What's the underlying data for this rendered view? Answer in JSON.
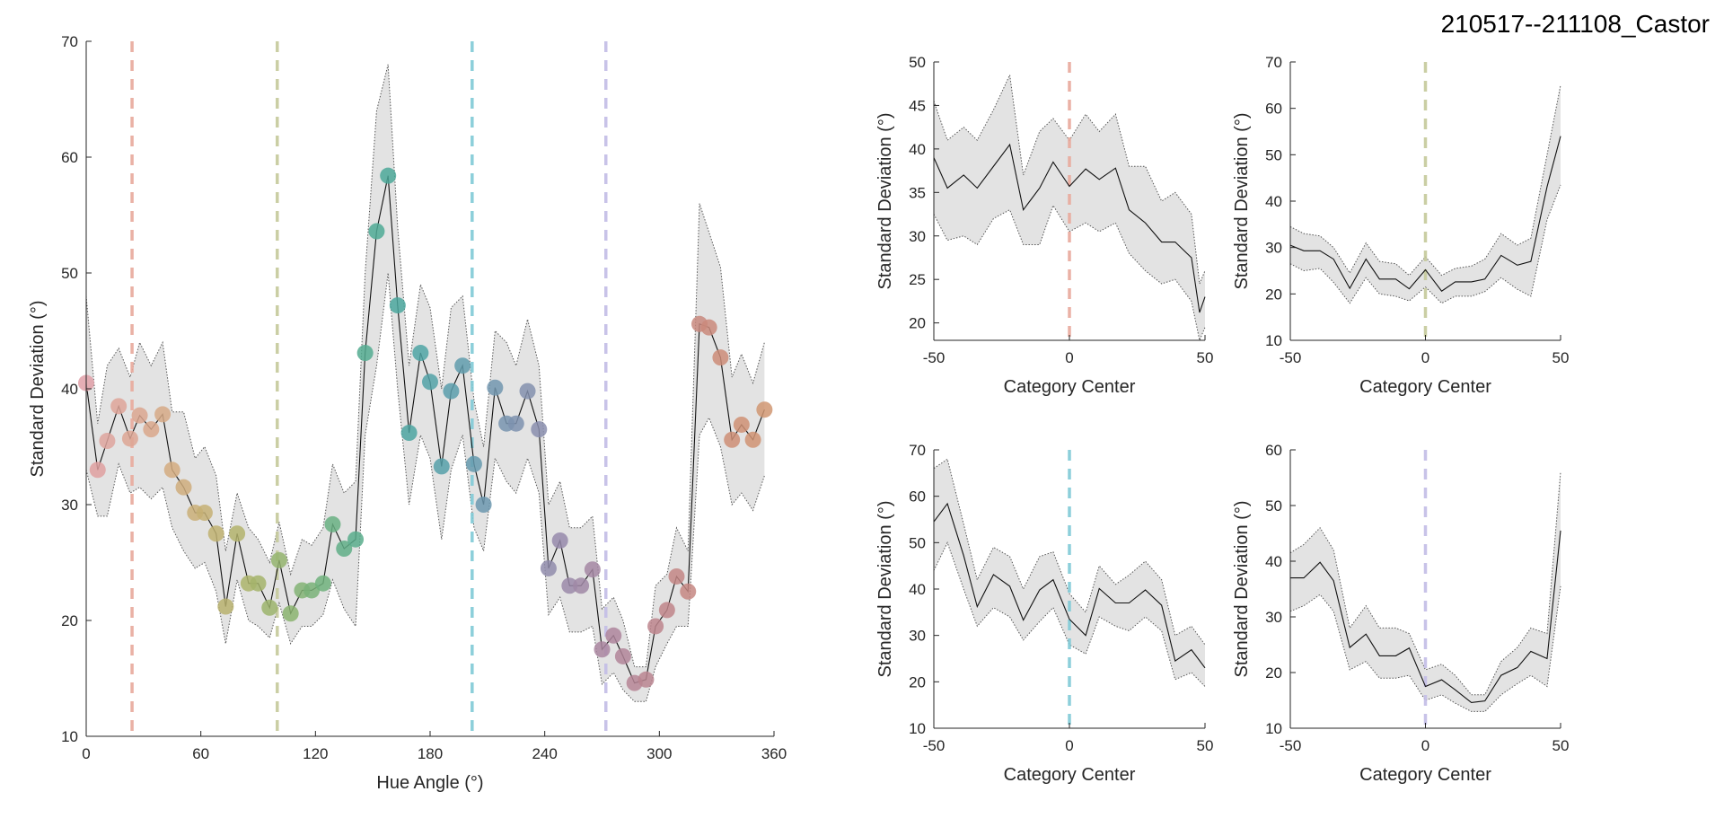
{
  "figure_title": "210517--211108_Castor",
  "chart_data": [
    {
      "id": "main",
      "type": "line",
      "xlabel": "Hue Angle (°)",
      "ylabel": "Standard Deviation (°)",
      "xlim": [
        0,
        360
      ],
      "ylim": [
        10,
        70
      ],
      "xticks": [
        0,
        60,
        120,
        180,
        240,
        300,
        360
      ],
      "yticks": [
        10,
        20,
        30,
        40,
        50,
        60,
        70
      ],
      "category_lines": [
        {
          "x": 24,
          "color": "#e8a99b"
        },
        {
          "x": 100,
          "color": "#c4c99a"
        },
        {
          "x": 202,
          "color": "#7fcad6"
        },
        {
          "x": 272,
          "color": "#c2bde6"
        }
      ],
      "x": [
        0,
        6,
        11,
        17,
        23,
        28,
        34,
        40,
        45,
        51,
        57,
        62,
        68,
        73,
        79,
        85,
        90,
        96,
        101,
        107,
        113,
        118,
        124,
        129,
        135,
        141,
        146,
        152,
        158,
        163,
        169,
        175,
        180,
        186,
        191,
        197,
        203,
        208,
        214,
        220,
        225,
        231,
        237,
        242,
        248,
        253,
        259,
        265,
        270,
        276,
        281,
        287,
        293,
        298,
        304,
        309,
        315,
        321,
        326,
        332,
        338,
        343,
        349,
        355
      ],
      "values": [
        40.5,
        33,
        35.5,
        38.5,
        35.7,
        37.7,
        36.5,
        37.8,
        33,
        31.5,
        29.3,
        29.3,
        27.5,
        21.2,
        27.5,
        23.2,
        23.2,
        21.1,
        25.2,
        20.6,
        22.6,
        22.6,
        23.2,
        28.3,
        26.2,
        27,
        43.1,
        53.6,
        58.4,
        47.2,
        36.2,
        43.1,
        40.6,
        33.3,
        39.8,
        42,
        33.5,
        30,
        40.1,
        37,
        37,
        39.8,
        36.5,
        24.5,
        26.9,
        23,
        23,
        24.4,
        17.5,
        18.7,
        16.9,
        14.6,
        14.9,
        19.5,
        20.9,
        23.8,
        22.5,
        45.6,
        45.3,
        42.7,
        35.6,
        36.9,
        35.6,
        38.2
      ],
      "upper": [
        48,
        37,
        42,
        43.5,
        41,
        44,
        42,
        44,
        38,
        38,
        34,
        35,
        32.5,
        26,
        31,
        28,
        27,
        25,
        28.5,
        24,
        27,
        26.5,
        28,
        33.5,
        31,
        32,
        50,
        64,
        68,
        54,
        42,
        49,
        47,
        40,
        47,
        48,
        39,
        35,
        45,
        44,
        42,
        46,
        42,
        30,
        32,
        28,
        28,
        29,
        21,
        22,
        20,
        16,
        16,
        23,
        24,
        28,
        26,
        56,
        53.5,
        50.5,
        41,
        43,
        40.5,
        44
      ],
      "lower": [
        33,
        29,
        29,
        33.5,
        31,
        31.5,
        30.5,
        31.5,
        28,
        26,
        24.5,
        25,
        22.5,
        18,
        23.5,
        20,
        19.5,
        18.5,
        21.5,
        18,
        19.5,
        19.5,
        20.5,
        23.5,
        21,
        19.5,
        36,
        42,
        50,
        40,
        30,
        36,
        34,
        27,
        33,
        36,
        28,
        26,
        34,
        32,
        31,
        34,
        31,
        20.5,
        22,
        19,
        19,
        19.5,
        14.5,
        15.5,
        14,
        13,
        13,
        16,
        18,
        19.5,
        19.5,
        36,
        37.5,
        35,
        30,
        31,
        29.5,
        32.5
      ],
      "point_colors": [
        "#e0a0a8",
        "#dfa0a0",
        "#dea49d",
        "#dea599",
        "#dda694",
        "#dba68f",
        "#d9a78b",
        "#d6a986",
        "#d3ab80",
        "#cfad7c",
        "#caaf78",
        "#c5b074",
        "#bfb171",
        "#b9b26e",
        "#b3b36c",
        "#acb46b",
        "#a4b46b",
        "#9cb46c",
        "#94b46e",
        "#8bb470",
        "#82b374",
        "#79b278",
        "#70b17d",
        "#68b082",
        "#60ae87",
        "#59ad8c",
        "#53ab91",
        "#4faa95",
        "#4ca899",
        "#4ba79d",
        "#4ca5a1",
        "#4fa4a4",
        "#52a2a7",
        "#56a0a9",
        "#5b9eab",
        "#609cad",
        "#669aae",
        "#6c98af",
        "#7296af",
        "#7894af",
        "#7e92af",
        "#8490ae",
        "#8a8eae",
        "#908cac",
        "#968aab",
        "#9b89a9",
        "#a088a6",
        "#a587a3",
        "#aa86a0",
        "#ae859c",
        "#b28599",
        "#b68595",
        "#ba8591",
        "#bd858d",
        "#c08589",
        "#c38685",
        "#c68782",
        "#c8887e",
        "#ca8a7b",
        "#cc8c78",
        "#ce8e76",
        "#cf9074",
        "#d09373",
        "#d09672"
      ]
    },
    {
      "id": "panel-1",
      "type": "line",
      "xlabel": "Category Center",
      "ylabel": "Standard Deviation (°)",
      "xlim": [
        -50,
        50
      ],
      "ylim": [
        18,
        50
      ],
      "xticks": [
        -50,
        0,
        50
      ],
      "yticks": [
        20,
        25,
        30,
        35,
        40,
        45,
        50
      ],
      "category_line": {
        "x": 0,
        "color": "#e8a99b"
      },
      "x": [
        -50,
        -45,
        -39,
        -34,
        -28,
        -22,
        -17,
        -11,
        -6,
        0,
        6,
        11,
        17,
        22,
        28,
        34,
        39,
        45,
        48,
        50
      ],
      "values": [
        39,
        35.5,
        37,
        35.5,
        38,
        40.5,
        33,
        35.5,
        38.5,
        35.7,
        37.7,
        36.5,
        37.8,
        33,
        31.5,
        29.3,
        29.3,
        27.5,
        21.2,
        23
      ],
      "upper": [
        45.5,
        41,
        42.5,
        41,
        44.5,
        48.5,
        37,
        42,
        43.5,
        41,
        44,
        42,
        44,
        38,
        38,
        34,
        35,
        32.5,
        24.5,
        26
      ],
      "lower": [
        32.5,
        29.5,
        30,
        29,
        32,
        33,
        29,
        29,
        33.5,
        30.5,
        31.5,
        30.5,
        31.5,
        28,
        26,
        24.5,
        25,
        22.5,
        18,
        19.5
      ]
    },
    {
      "id": "panel-2",
      "type": "line",
      "xlabel": "Category Center",
      "ylabel": "Standard Deviation (°)",
      "xlim": [
        -50,
        50
      ],
      "ylim": [
        10,
        70
      ],
      "xticks": [
        -50,
        0,
        50
      ],
      "yticks": [
        10,
        20,
        30,
        40,
        50,
        60,
        70
      ],
      "category_line": {
        "x": 0,
        "color": "#c4c99a"
      },
      "x": [
        -50,
        -45,
        -39,
        -34,
        -28,
        -22,
        -17,
        -11,
        -6,
        0,
        6,
        11,
        17,
        22,
        28,
        34,
        39,
        45,
        50
      ],
      "values": [
        30.5,
        29.3,
        29.3,
        27.5,
        21.2,
        27.5,
        23.2,
        23.2,
        21.1,
        25.2,
        20.6,
        22.6,
        22.6,
        23.2,
        28.3,
        26.2,
        27,
        43.1,
        54
      ],
      "upper": [
        34.5,
        33,
        32.5,
        30,
        24.5,
        31,
        27,
        26.5,
        24,
        28,
        24,
        25.5,
        26,
        27.5,
        33,
        30.5,
        32,
        50,
        65
      ],
      "lower": [
        26.5,
        25,
        25.5,
        22.5,
        18,
        23.5,
        20,
        19.5,
        18.5,
        21.5,
        18,
        19.5,
        19.5,
        20.5,
        23.5,
        21,
        19.5,
        36,
        43.5
      ]
    },
    {
      "id": "panel-3",
      "type": "line",
      "xlabel": "Category Center",
      "ylabel": "Standard Deviation (°)",
      "xlim": [
        -50,
        50
      ],
      "ylim": [
        10,
        70
      ],
      "xticks": [
        -50,
        0,
        50
      ],
      "yticks": [
        10,
        20,
        30,
        40,
        50,
        60,
        70
      ],
      "category_line": {
        "x": 0,
        "color": "#7fcad6"
      },
      "x": [
        -50,
        -45,
        -39,
        -34,
        -28,
        -22,
        -17,
        -11,
        -6,
        0,
        6,
        11,
        17,
        22,
        28,
        34,
        39,
        45,
        50
      ],
      "values": [
        54.5,
        58.4,
        47.2,
        36.2,
        43.1,
        40.6,
        33.3,
        39.8,
        42,
        33.5,
        30,
        40.1,
        37,
        37,
        39.8,
        36.5,
        24.5,
        26.9,
        23
      ],
      "upper": [
        66,
        68,
        54,
        42,
        49,
        47,
        40,
        47,
        48,
        39,
        35,
        45,
        41,
        43,
        46,
        42,
        30,
        32,
        28
      ],
      "lower": [
        44,
        50,
        40,
        32,
        36,
        34,
        29,
        33,
        36,
        28,
        26,
        34,
        32,
        31,
        34,
        31,
        20.5,
        22,
        19
      ]
    },
    {
      "id": "panel-4",
      "type": "line",
      "xlabel": "Category Center",
      "ylabel": "Standard Deviation (°)",
      "xlim": [
        -50,
        50
      ],
      "ylim": [
        10,
        60
      ],
      "xticks": [
        -50,
        0,
        50
      ],
      "yticks": [
        10,
        20,
        30,
        40,
        50,
        60
      ],
      "category_line": {
        "x": 0,
        "color": "#c2bde6"
      },
      "x": [
        -50,
        -45,
        -39,
        -34,
        -28,
        -22,
        -17,
        -11,
        -6,
        0,
        6,
        11,
        17,
        22,
        28,
        34,
        39,
        45,
        50
      ],
      "values": [
        37,
        37,
        39.8,
        36.5,
        24.5,
        26.9,
        23,
        23,
        24.4,
        17.5,
        18.7,
        16.9,
        14.6,
        14.9,
        19.5,
        20.9,
        23.8,
        22.5,
        45.5
      ],
      "upper": [
        41.5,
        43,
        46,
        42,
        28,
        32,
        28,
        28,
        27,
        20.5,
        21.5,
        19.5,
        16,
        16,
        22,
        24.5,
        28,
        27,
        56
      ],
      "lower": [
        31,
        32,
        34,
        31,
        20.5,
        22,
        19,
        19,
        19.5,
        15,
        16,
        14.5,
        13,
        13,
        16,
        18,
        19.5,
        17.5,
        35.5
      ]
    }
  ]
}
